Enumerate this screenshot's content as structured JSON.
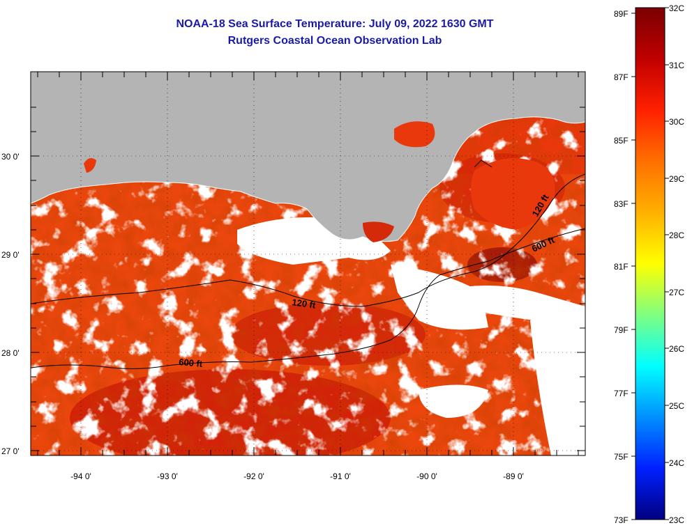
{
  "title": {
    "line1": "NOAA-18 Sea Surface Temperature:  July 09, 2022 1630 GMT",
    "line2": "Rutgers Coastal Ocean Observation Lab"
  },
  "map": {
    "longitude_labels": [
      "-94 0'",
      "-93 0'",
      "-92 0'",
      "-91 0'",
      "-90 0'",
      "-89 0'"
    ],
    "latitude_labels": [
      "30 0'",
      "29 0'",
      "28 0'",
      "27 0'"
    ],
    "contour_labels": [
      "120 ft",
      "600 ft",
      "120 ft",
      "600 ft"
    ],
    "colors": {
      "land": "#b4b4b4",
      "cloud": "#ffffff",
      "sst_dominant": "#e8300a",
      "contour": "#000000",
      "title": "#1a1aa8"
    }
  },
  "colorbar": {
    "fahrenheit_labels": [
      "89F",
      "87F",
      "85F",
      "83F",
      "81F",
      "79F",
      "77F",
      "75F",
      "73F"
    ],
    "celsius_labels": [
      "32C",
      "31C",
      "30C",
      "29C",
      "28C",
      "27C",
      "26C",
      "25C",
      "24C",
      "23C"
    ],
    "stops": [
      "#7a0000",
      "#c00000",
      "#ff2000",
      "#ff7000",
      "#ffb000",
      "#ffff00",
      "#80ff80",
      "#00ffff",
      "#0090ff",
      "#0020ff",
      "#000080"
    ]
  }
}
